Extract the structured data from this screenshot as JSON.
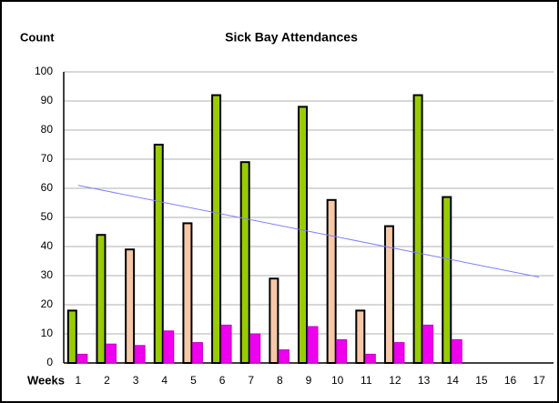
{
  "chart_data": {
    "type": "bar",
    "title": "Sick Bay Attendances",
    "y_label": "Count",
    "x_label": "Weeks",
    "categories": [
      "1",
      "2",
      "3",
      "4",
      "5",
      "6",
      "7",
      "8",
      "9",
      "10",
      "11",
      "12",
      "13",
      "14",
      "15",
      "16",
      "17"
    ],
    "series": [
      {
        "colors": [
          "#99cc00",
          "#99cc00",
          "#f5c8a8",
          "#99cc00",
          "#f5c8a8",
          "#99cc00",
          "#99cc00",
          "#f5c8a8",
          "#99cc00",
          "#f5c8a8",
          "#f5c8a8",
          "#f5c8a8",
          "#99cc00",
          "#99cc00",
          null,
          null,
          null
        ],
        "values": [
          18,
          44,
          39,
          75,
          48,
          92,
          69,
          29,
          88,
          56,
          18,
          47,
          92,
          57,
          null,
          null,
          null
        ]
      },
      {
        "color": "#ee00ee",
        "values": [
          3,
          6.5,
          6,
          11,
          7,
          13,
          10,
          4.5,
          12.5,
          8,
          3,
          7,
          13,
          8,
          null,
          null,
          null
        ]
      }
    ],
    "trendline": {
      "color": "#8080ff",
      "x": [
        1,
        17
      ],
      "values": [
        61,
        29.5
      ]
    },
    "ylim": [
      0,
      100
    ],
    "yticks": [
      0,
      10,
      20,
      30,
      40,
      50,
      60,
      70,
      80,
      90,
      100
    ],
    "grid": true
  }
}
